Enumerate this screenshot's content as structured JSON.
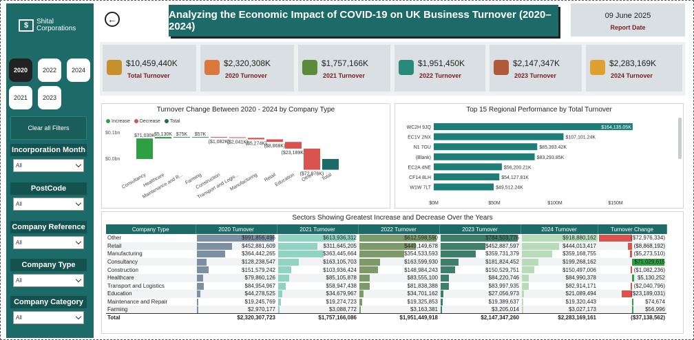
{
  "brand": {
    "line1": "Shital",
    "line2": "Corporations"
  },
  "year_buttons": [
    {
      "label": "2020",
      "active": true
    },
    {
      "label": "2022",
      "active": false
    },
    {
      "label": "2024",
      "active": false
    },
    {
      "label": "2021",
      "active": false
    },
    {
      "label": "2023",
      "active": false
    }
  ],
  "clear_filters_label": "Clear all Filters",
  "slicers": [
    {
      "title": "Incorporation Month",
      "value": "All"
    },
    {
      "title": "PostCode",
      "value": "All"
    },
    {
      "title": "Company Reference",
      "value": "All"
    },
    {
      "title": "Company Type",
      "value": "All"
    },
    {
      "title": "Company Category",
      "value": "All"
    }
  ],
  "header": {
    "title": "Analyzing the Economic Impact of COVID-19 on UK Business Turnover (2020–2024)",
    "date": "09 June 2025",
    "date_label": "Report Date"
  },
  "kpis": [
    {
      "value": "$10,459,440K",
      "label": "Total Turnover",
      "icon": "money-growth-icon",
      "color": "#c8902a"
    },
    {
      "value": "$2,320,308K",
      "label": "2020 Turnover",
      "icon": "hand-money-icon",
      "color": "#d97a3c"
    },
    {
      "value": "$1,757,166K",
      "label": "2021 Turnover",
      "icon": "cash-stack-icon",
      "color": "#5a8a3a"
    },
    {
      "value": "$1,951,450K",
      "label": "2022 Turnover",
      "icon": "mobile-pay-icon",
      "color": "#2a8a7a"
    },
    {
      "value": "$2,147,347K",
      "label": "2023 Turnover",
      "icon": "bank-chart-icon",
      "color": "#b05a3a"
    },
    {
      "value": "$2,283,169K",
      "label": "2024 Turnover",
      "icon": "coins-hand-icon",
      "color": "#e0a030"
    }
  ],
  "waterfall": {
    "title": "Turnover Change Between 2020 - 2024 by Company Type",
    "legend": [
      {
        "label": "Increase",
        "color": "#2ea043"
      },
      {
        "label": "Decrease",
        "color": "#d9534f"
      },
      {
        "label": "Total",
        "color": "#1d6b69"
      }
    ],
    "y_ticks": [
      "$0.1bn",
      "$0.0bn"
    ]
  },
  "regional": {
    "title": "Top 15 Regional Performance by Total Turnover",
    "x_ticks": [
      "$0M",
      "$50M",
      "$100M",
      "$150M"
    ]
  },
  "table": {
    "title": "Sectors Showing Greatest Increase and Decrease Over the Years",
    "headers": [
      "Company Type",
      "2020 Turnover",
      "2021 Turnover",
      "2022 Turnover",
      "2023 Turnover",
      "2024 Turnover",
      "Turnover Change"
    ],
    "rows": [
      {
        "type": "Other",
        "v": [
          "$991,856,496",
          "$613,936,312",
          "$612,598,590",
          "$784,503,776",
          "$918,880,162",
          "($72,976,334)"
        ],
        "n": [
          991856496,
          613936312,
          612598590,
          784503776,
          918880162,
          -72976334
        ]
      },
      {
        "type": "Retail",
        "v": [
          "$452,881,609",
          "$311,645,205",
          "$449,149,678",
          "$452,887,597",
          "$444,013,417",
          "($8,868,192)"
        ],
        "n": [
          452881609,
          311645205,
          449149678,
          452887597,
          444013417,
          -8868192
        ]
      },
      {
        "type": "Manufacturing",
        "v": [
          "$364,442,265",
          "$363,445,664",
          "$354,533,593",
          "$359,731,379",
          "$359,168,755",
          "($5,273,510)"
        ],
        "n": [
          364442265,
          363445664,
          354533593,
          359731379,
          359168755,
          -5273510
        ]
      },
      {
        "type": "Consultancy",
        "v": [
          "$128,238,547",
          "$163,105,703",
          "$163,599,930",
          "$181,824,452",
          "$199,268,162",
          "$71,029,615"
        ],
        "n": [
          128238547,
          163105703,
          163599930,
          181824452,
          199268162,
          71029615
        ]
      },
      {
        "type": "Construction",
        "v": [
          "$151,579,242",
          "$103,936,424",
          "$148,984,243",
          "$150,529,751",
          "$150,497,006",
          "($1,082,236)"
        ],
        "n": [
          151579242,
          103936424,
          148984243,
          150529751,
          150497006,
          -1082236
        ]
      },
      {
        "type": "Healthcare",
        "v": [
          "$79,860,126",
          "$85,105,878",
          "$83,555,100",
          "$84,220,746",
          "$84,990,378",
          "$5,130,252"
        ],
        "n": [
          79860126,
          85105878,
          83555100,
          84220746,
          84990378,
          5130252
        ]
      },
      {
        "type": "Transport and Logistics",
        "v": [
          "$84,954,967",
          "$58,947,438",
          "$81,838,388",
          "$83,997,935",
          "$82,914,171",
          "($2,040,796)"
        ],
        "n": [
          84954967,
          58947438,
          81838388,
          83997935,
          82914171,
          -2040796
        ]
      },
      {
        "type": "Education",
        "v": [
          "$44,278,525",
          "$34,679,967",
          "$34,701,162",
          "$27,056,973",
          "$21,089,494",
          "($23,189,031)"
        ],
        "n": [
          44278525,
          34679967,
          34701162,
          27056973,
          21089494,
          -23189031
        ]
      },
      {
        "type": "Maintenance and Repair",
        "v": [
          "$19,245,769",
          "$19,274,723",
          "$19,325,853",
          "$19,389,637",
          "$19,320,443",
          "$74,674"
        ],
        "n": [
          19245769,
          19274723,
          19325853,
          19389637,
          19320443,
          74674
        ]
      },
      {
        "type": "Farming",
        "v": [
          "$2,970,177",
          "$3,088,772",
          "$3,163,381",
          "$3,205,014",
          "$3,027,173",
          "$56,996"
        ],
        "n": [
          2970177,
          3088772,
          3163381,
          3205014,
          3027173,
          56996
        ]
      }
    ],
    "total": {
      "type": "Total",
      "v": [
        "$2,320,307,723",
        "$1,757,166,086",
        "$1,951,449,918",
        "$2,147,347,260",
        "$2,283,169,161",
        "($37,138,562)"
      ]
    },
    "bar_colors": [
      "#7d8fa3",
      "#8fd3c0",
      "#7d9a6a",
      "#3f7f6a",
      "#b8dcb8",
      ""
    ]
  },
  "chart_data": [
    {
      "type": "bar",
      "title": "Turnover Change Between 2020 - 2024 by Company Type",
      "subtype": "waterfall",
      "categories": [
        "Consultancy",
        "Healthcare",
        "Maintenance and R...",
        "Farming",
        "Construction",
        "Transport and Logis...",
        "Manufacturing",
        "Retail",
        "Education",
        "Other",
        "Total"
      ],
      "values": [
        71030,
        5130,
        75,
        57,
        -1082,
        -2041,
        -5274,
        -8868,
        -23189,
        -72976,
        -37139
      ],
      "labels": [
        "$71,030K",
        "$5,130K",
        "$75K",
        "$57K",
        "($1,082K)",
        "($2,041K)",
        "($5,274K)",
        "($8,868K)",
        "($23,189K)",
        "($72,976K)",
        ""
      ],
      "unit": "$K",
      "ylim": [
        -0.05,
        0.1
      ]
    },
    {
      "type": "bar",
      "orientation": "horizontal",
      "title": "Top 15 Regional Performance by Total Turnover",
      "categories": [
        "WC2H 9JQ",
        "EC1V 2NX",
        "N1 7GU",
        "(Blank)",
        "EC2A 4NE",
        "CF14 8LH",
        "W1W 7LT"
      ],
      "values": [
        164135.05,
        107101.24,
        85393.42,
        83293.85,
        56200.21,
        54127.81,
        49512.24
      ],
      "labels": [
        "$164,135.05K",
        "$107,101.24K",
        "$85,393.42K",
        "$83,293.85K",
        "$56,200.21K",
        "$54,127.81K",
        "$49,512.24K"
      ],
      "unit": "$K",
      "xlim": [
        0,
        175000
      ]
    }
  ]
}
